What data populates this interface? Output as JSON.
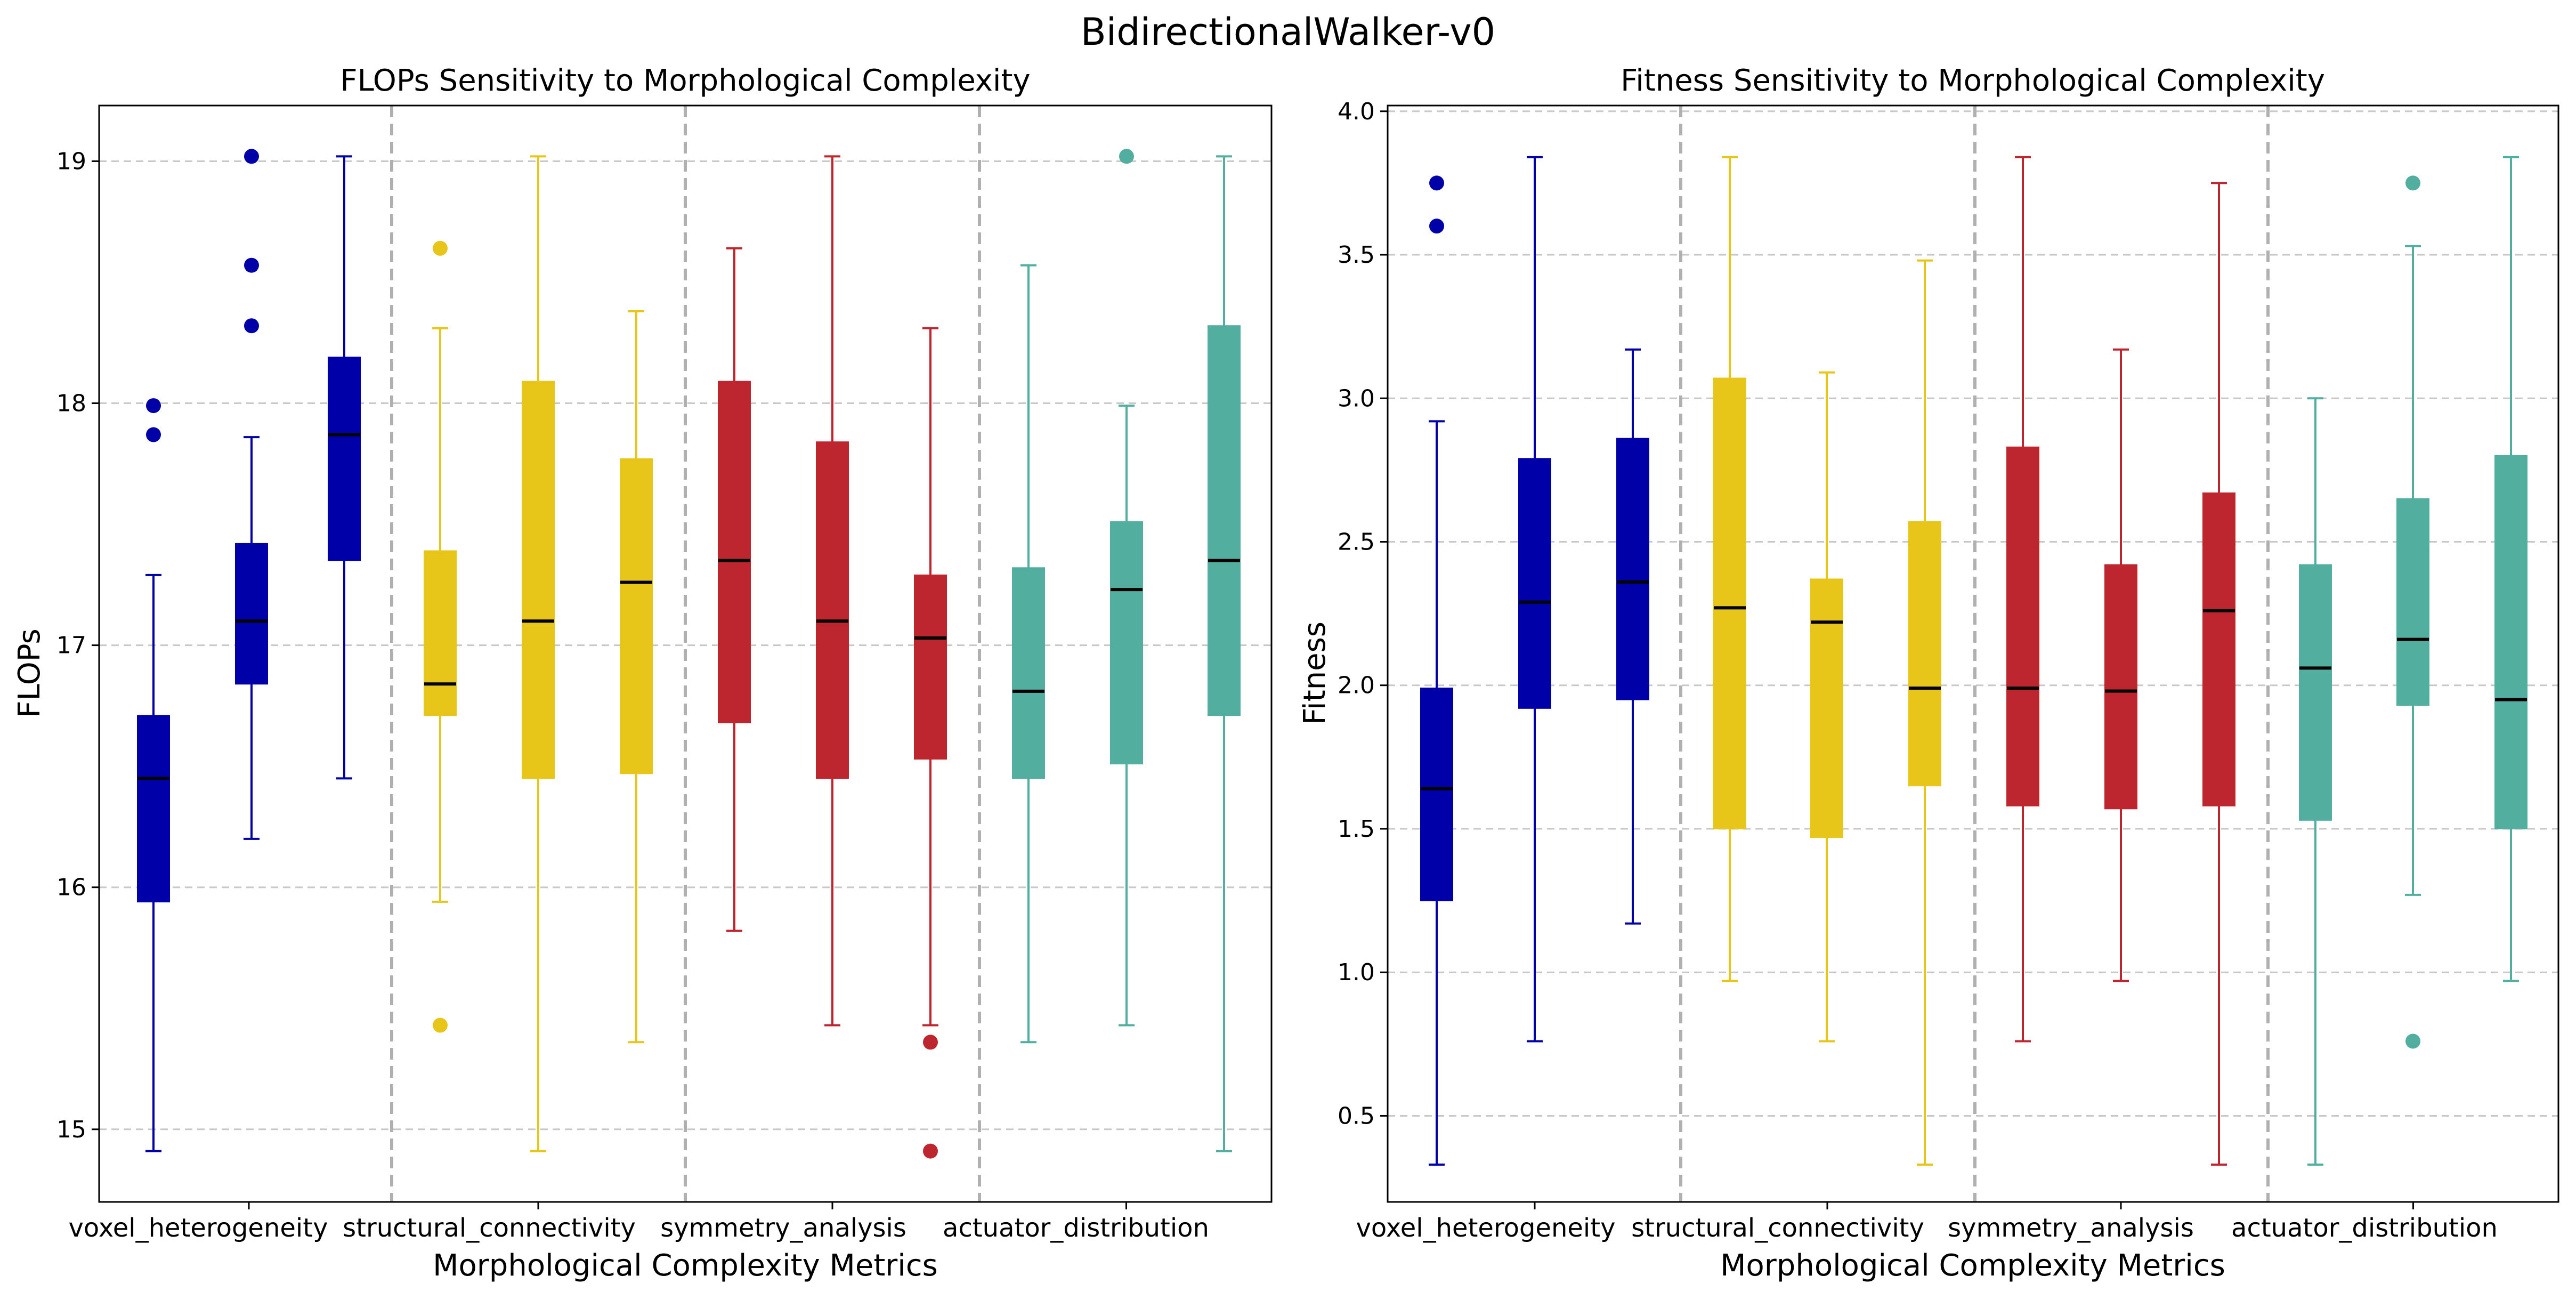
{
  "figure_title": "BidirectionalWalker-v0",
  "colors": {
    "voxel_heterogeneity": "#0000a8",
    "structural_connectivity": "#e8c619",
    "symmetry_analysis": "#bd262e",
    "actuator_distribution": "#52ae9f",
    "grid": "#c8c8c8",
    "separator": "#b0b0b0",
    "median": "#000000"
  },
  "chart_data": [
    {
      "type": "box",
      "title": "FLOPs Sensitivity to Morphological Complexity",
      "xlabel": "Morphological Complexity Metrics",
      "ylabel": "FLOPs",
      "ylim": [
        14.7,
        19.23
      ],
      "yticks": [
        15,
        16,
        17,
        18,
        19
      ],
      "ytick_labels": [
        "15",
        "16",
        "17",
        "18",
        "19"
      ],
      "grid": "horizontal dashed",
      "categories": [
        "voxel_heterogeneity",
        "structural_connectivity",
        "symmetry_analysis",
        "actuator_distribution"
      ],
      "boxes": [
        {
          "group": "voxel_heterogeneity",
          "whislo": 14.91,
          "q1": 15.94,
          "med": 16.45,
          "q3": 16.71,
          "whishi": 17.29,
          "fliers": [
            17.99,
            17.87
          ]
        },
        {
          "group": "voxel_heterogeneity",
          "whislo": 16.2,
          "q1": 16.84,
          "med": 17.1,
          "q3": 17.42,
          "whishi": 17.86,
          "fliers": [
            19.02,
            18.57,
            18.32
          ]
        },
        {
          "group": "voxel_heterogeneity",
          "whislo": 16.45,
          "q1": 17.35,
          "med": 17.87,
          "q3": 18.19,
          "whishi": 19.02,
          "fliers": []
        },
        {
          "group": "structural_connectivity",
          "whislo": 15.94,
          "q1": 16.71,
          "med": 16.84,
          "q3": 17.39,
          "whishi": 18.31,
          "fliers": [
            18.64,
            15.43
          ]
        },
        {
          "group": "structural_connectivity",
          "whislo": 14.91,
          "q1": 16.45,
          "med": 17.1,
          "q3": 18.09,
          "whishi": 19.02,
          "fliers": []
        },
        {
          "group": "structural_connectivity",
          "whislo": 15.36,
          "q1": 16.47,
          "med": 17.26,
          "q3": 17.77,
          "whishi": 18.38,
          "fliers": []
        },
        {
          "group": "symmetry_analysis",
          "whislo": 15.82,
          "q1": 16.68,
          "med": 17.35,
          "q3": 18.09,
          "whishi": 18.64,
          "fliers": []
        },
        {
          "group": "symmetry_analysis",
          "whislo": 15.43,
          "q1": 16.45,
          "med": 17.1,
          "q3": 17.84,
          "whishi": 19.02,
          "fliers": []
        },
        {
          "group": "symmetry_analysis",
          "whislo": 15.43,
          "q1": 16.53,
          "med": 17.03,
          "q3": 17.29,
          "whishi": 18.31,
          "fliers": [
            15.36,
            14.91
          ]
        },
        {
          "group": "actuator_distribution",
          "whislo": 15.36,
          "q1": 16.45,
          "med": 16.81,
          "q3": 17.32,
          "whishi": 18.57,
          "fliers": []
        },
        {
          "group": "actuator_distribution",
          "whislo": 15.43,
          "q1": 16.51,
          "med": 17.23,
          "q3": 17.51,
          "whishi": 17.99,
          "fliers": [
            19.02
          ]
        },
        {
          "group": "actuator_distribution",
          "whislo": 14.91,
          "q1": 16.71,
          "med": 17.35,
          "q3": 18.32,
          "whishi": 19.02,
          "fliers": []
        }
      ]
    },
    {
      "type": "box",
      "title": "Fitness Sensitivity to Morphological Complexity",
      "xlabel": "Morphological Complexity Metrics",
      "ylabel": "Fitness",
      "ylim": [
        0.2,
        4.02
      ],
      "yticks": [
        0.5,
        1.0,
        1.5,
        2.0,
        2.5,
        3.0,
        3.5,
        4.0
      ],
      "ytick_labels": [
        "0.5",
        "1.0",
        "1.5",
        "2.0",
        "2.5",
        "3.0",
        "3.5",
        "4.0"
      ],
      "grid": "horizontal dashed",
      "categories": [
        "voxel_heterogeneity",
        "structural_connectivity",
        "symmetry_analysis",
        "actuator_distribution"
      ],
      "boxes": [
        {
          "group": "voxel_heterogeneity",
          "whislo": 0.33,
          "q1": 1.25,
          "med": 1.64,
          "q3": 1.99,
          "whishi": 2.92,
          "fliers": [
            3.75,
            3.6
          ]
        },
        {
          "group": "voxel_heterogeneity",
          "whislo": 0.76,
          "q1": 1.92,
          "med": 2.29,
          "q3": 2.79,
          "whishi": 3.84,
          "fliers": []
        },
        {
          "group": "voxel_heterogeneity",
          "whislo": 1.17,
          "q1": 1.95,
          "med": 2.36,
          "q3": 2.86,
          "whishi": 3.17,
          "fliers": []
        },
        {
          "group": "structural_connectivity",
          "whislo": 0.97,
          "q1": 1.5,
          "med": 2.27,
          "q3": 3.07,
          "whishi": 3.84,
          "fliers": []
        },
        {
          "group": "structural_connectivity",
          "whislo": 0.76,
          "q1": 1.47,
          "med": 2.22,
          "q3": 2.37,
          "whishi": 3.09,
          "fliers": []
        },
        {
          "group": "structural_connectivity",
          "whislo": 0.33,
          "q1": 1.65,
          "med": 1.99,
          "q3": 2.57,
          "whishi": 3.48,
          "fliers": []
        },
        {
          "group": "symmetry_analysis",
          "whislo": 0.76,
          "q1": 1.58,
          "med": 1.99,
          "q3": 2.83,
          "whishi": 3.84,
          "fliers": []
        },
        {
          "group": "symmetry_analysis",
          "whislo": 0.97,
          "q1": 1.57,
          "med": 1.98,
          "q3": 2.42,
          "whishi": 3.17,
          "fliers": []
        },
        {
          "group": "symmetry_analysis",
          "whislo": 0.33,
          "q1": 1.58,
          "med": 2.26,
          "q3": 2.67,
          "whishi": 3.75,
          "fliers": []
        },
        {
          "group": "actuator_distribution",
          "whislo": 0.33,
          "q1": 1.53,
          "med": 2.06,
          "q3": 2.42,
          "whishi": 3.0,
          "fliers": []
        },
        {
          "group": "actuator_distribution",
          "whislo": 1.27,
          "q1": 1.93,
          "med": 2.16,
          "q3": 2.65,
          "whishi": 3.53,
          "fliers": [
            3.75,
            0.76
          ]
        },
        {
          "group": "actuator_distribution",
          "whislo": 0.97,
          "q1": 1.5,
          "med": 1.95,
          "q3": 2.8,
          "whishi": 3.84,
          "fliers": []
        }
      ]
    }
  ]
}
